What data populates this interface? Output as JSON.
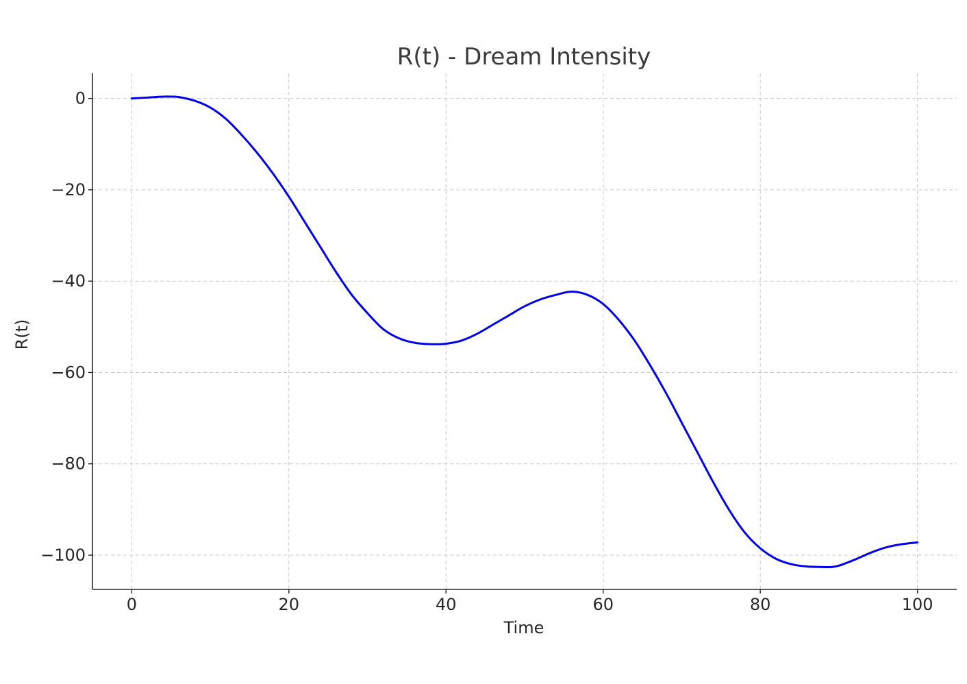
{
  "chart_data": {
    "type": "line",
    "title": "R(t) - Dream Intensity",
    "xlabel": "Time",
    "ylabel": "R(t)",
    "xlim": [
      -5,
      105
    ],
    "ylim": [
      -107.5,
      5.5
    ],
    "xticks": [
      0,
      20,
      40,
      60,
      80,
      100
    ],
    "xtick_labels": [
      "0",
      "20",
      "40",
      "60",
      "80",
      "100"
    ],
    "yticks": [
      0,
      -20,
      -40,
      -60,
      -80,
      -100
    ],
    "ytick_labels": [
      "0",
      "−20",
      "−40",
      "−60",
      "−80",
      "−100"
    ],
    "grid": true,
    "series": [
      {
        "color": "#0000ee",
        "x": [
          0,
          2,
          4,
          5,
          6,
          8,
          10,
          12,
          14,
          16,
          18,
          20,
          22,
          24,
          26,
          28,
          30,
          32,
          34,
          36,
          38,
          40,
          42,
          44,
          46,
          48,
          50,
          52,
          54,
          56,
          58,
          60,
          62,
          64,
          66,
          68,
          70,
          72,
          74,
          76,
          78,
          80,
          82,
          84,
          86,
          88,
          89,
          90,
          92,
          94,
          96,
          98,
          100
        ],
        "y": [
          0,
          0.2,
          0.4,
          0.4,
          0.3,
          -0.5,
          -2,
          -4.5,
          -8,
          -12,
          -16.5,
          -21.5,
          -27,
          -32.5,
          -38,
          -43,
          -47,
          -50.5,
          -52.5,
          -53.5,
          -53.8,
          -53.7,
          -53,
          -51.5,
          -49.5,
          -47.5,
          -45.5,
          -44,
          -43,
          -42.3,
          -43,
          -45,
          -48.5,
          -53,
          -58.5,
          -64.5,
          -71,
          -77.5,
          -84,
          -90,
          -95,
          -98.5,
          -100.8,
          -102,
          -102.5,
          -102.6,
          -102.6,
          -102.3,
          -101,
          -99.5,
          -98.3,
          -97.6,
          -97.2
        ]
      }
    ]
  }
}
